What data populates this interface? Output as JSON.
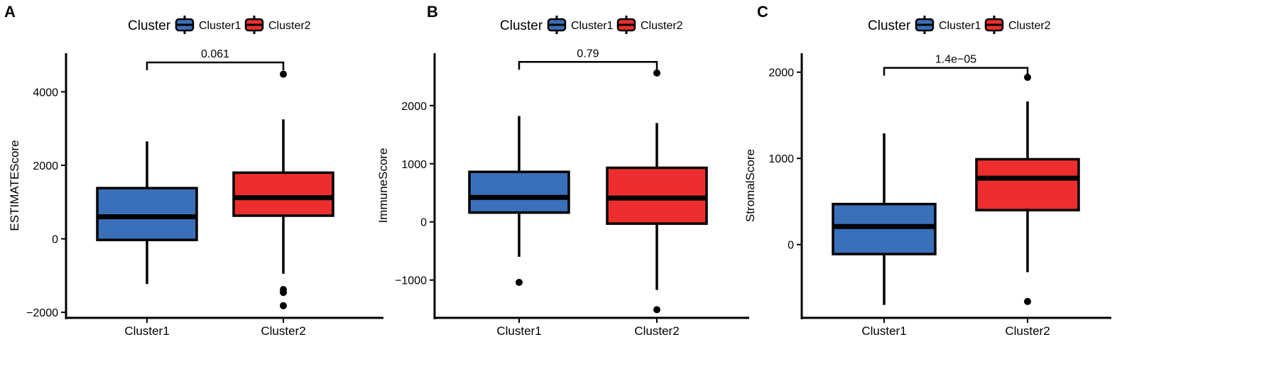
{
  "colors": {
    "cluster1": "#3A6FBA",
    "cluster2": "#EE2E2E",
    "stroke": "#000000"
  },
  "chart_data": [
    {
      "panel_label": "A",
      "type": "boxplot",
      "ylabel": "ESTIMATEScore",
      "legend": {
        "title": "Cluster",
        "placement": "top",
        "entries": [
          "Cluster1",
          "Cluster2"
        ]
      },
      "categories": [
        "Cluster1",
        "Cluster2"
      ],
      "ylim": [
        -2150,
        5050
      ],
      "yticks": [
        -2000,
        0,
        2000,
        4000
      ],
      "ytick_labels": [
        "−2000",
        "0",
        "2000",
        "4000"
      ],
      "p_value": "0.061",
      "p_bracket_y": 4800,
      "boxes": [
        {
          "name": "Cluster1",
          "whisker_low": -1230,
          "q1": -30,
          "median": 600,
          "q3": 1380,
          "whisker_high": 2650,
          "outliers": []
        },
        {
          "name": "Cluster2",
          "whisker_low": -950,
          "q1": 630,
          "median": 1120,
          "q3": 1800,
          "whisker_high": 3250,
          "outliers": [
            4480,
            -1380,
            -1460,
            -1820
          ]
        }
      ]
    },
    {
      "panel_label": "B",
      "type": "boxplot",
      "ylabel": "ImmuneScore",
      "legend": {
        "title": "Cluster",
        "placement": "top",
        "entries": [
          "Cluster1",
          "Cluster2"
        ]
      },
      "categories": [
        "Cluster1",
        "Cluster2"
      ],
      "ylim": [
        -1650,
        2900
      ],
      "yticks": [
        -1000,
        0,
        1000,
        2000
      ],
      "ytick_labels": [
        "−1000",
        "0",
        "1000",
        "2000"
      ],
      "p_value": "0.79",
      "p_bracket_y": 2750,
      "boxes": [
        {
          "name": "Cluster1",
          "whisker_low": -600,
          "q1": 160,
          "median": 420,
          "q3": 860,
          "whisker_high": 1820,
          "outliers": [
            -1040
          ]
        },
        {
          "name": "Cluster2",
          "whisker_low": -1170,
          "q1": -30,
          "median": 410,
          "q3": 930,
          "whisker_high": 1700,
          "outliers": [
            2560,
            -1510
          ]
        }
      ]
    },
    {
      "panel_label": "C",
      "type": "boxplot",
      "ylabel": "StromalScore",
      "legend": {
        "title": "Cluster",
        "placement": "top",
        "entries": [
          "Cluster1",
          "Cluster2"
        ]
      },
      "categories": [
        "Cluster1",
        "Cluster2"
      ],
      "ylim": [
        -850,
        2220
      ],
      "yticks": [
        0,
        1000,
        2000
      ],
      "ytick_labels": [
        "0",
        "1000",
        "2000"
      ],
      "p_value": "1.4e−05",
      "p_bracket_y": 2050,
      "boxes": [
        {
          "name": "Cluster1",
          "whisker_low": -700,
          "q1": -110,
          "median": 210,
          "q3": 470,
          "whisker_high": 1290,
          "outliers": []
        },
        {
          "name": "Cluster2",
          "whisker_low": -320,
          "q1": 400,
          "median": 770,
          "q3": 990,
          "whisker_high": 1660,
          "outliers": [
            1940,
            -660
          ]
        }
      ]
    }
  ]
}
